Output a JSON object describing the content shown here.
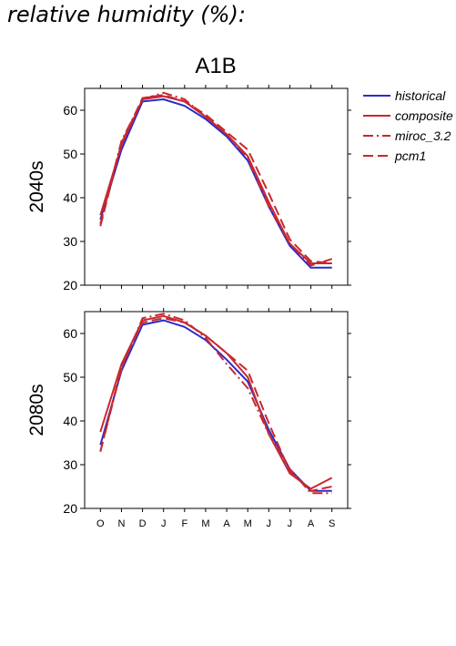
{
  "heading": "relative humidity (%):",
  "chart_data": {
    "type": "line",
    "title": "A1B",
    "xlabel": "",
    "ylabel": "",
    "categories": [
      "O",
      "N",
      "D",
      "J",
      "F",
      "M",
      "A",
      "M",
      "J",
      "J",
      "A",
      "S"
    ],
    "ylim": [
      20,
      65
    ],
    "yticks": [
      20,
      30,
      40,
      50,
      60
    ],
    "grid": false,
    "legend_position": "right",
    "legend": [
      {
        "name": "historical",
        "color": "#2b2bcc",
        "style": "solid"
      },
      {
        "name": "composite",
        "color": "#c8282d",
        "style": "solid"
      },
      {
        "name": "miroc_3.2",
        "color": "#c8282d",
        "style": "dashdot"
      },
      {
        "name": "pcm1",
        "color": "#c8282d",
        "style": "dashed"
      }
    ],
    "panels": [
      {
        "label": "2040s",
        "series": [
          {
            "name": "historical",
            "values": [
              35,
              51,
              62,
              62.5,
              61,
              58,
              54,
              48.5,
              38,
              29,
              24,
              24
            ]
          },
          {
            "name": "composite",
            "values": [
              36,
              52,
              62.5,
              63.2,
              62,
              58.5,
              54.5,
              49.5,
              39,
              29.5,
              25,
              25
            ]
          },
          {
            "name": "miroc_3.2",
            "values": [
              34,
              53,
              62.5,
              64,
              62.5,
              58.5,
              54.5,
              49,
              38,
              29.5,
              24.5,
              26
            ]
          },
          {
            "name": "pcm1",
            "values": [
              33.5,
              52.5,
              62.8,
              63.5,
              62,
              59,
              55,
              51,
              41,
              30.5,
              25.5,
              25
            ]
          }
        ]
      },
      {
        "label": "2080s",
        "series": [
          {
            "name": "historical",
            "values": [
              34.5,
              51.5,
              62,
              63,
              61.5,
              58.5,
              54,
              49,
              38,
              29,
              24,
              24
            ]
          },
          {
            "name": "composite",
            "values": [
              37.5,
              53,
              63,
              64,
              62.5,
              59.5,
              55.5,
              50,
              37,
              28,
              24.5,
              27
            ]
          },
          {
            "name": "miroc_3.2",
            "values": [
              33,
              52,
              63.5,
              64.5,
              63,
              59,
              53,
              47.5,
              37,
              29,
              23.5,
              23.5
            ]
          },
          {
            "name": "pcm1",
            "values": [
              33,
              52.5,
              62.5,
              63.5,
              62.5,
              59.5,
              55.5,
              51.5,
              39.5,
              28.5,
              24,
              25
            ]
          }
        ]
      }
    ]
  }
}
